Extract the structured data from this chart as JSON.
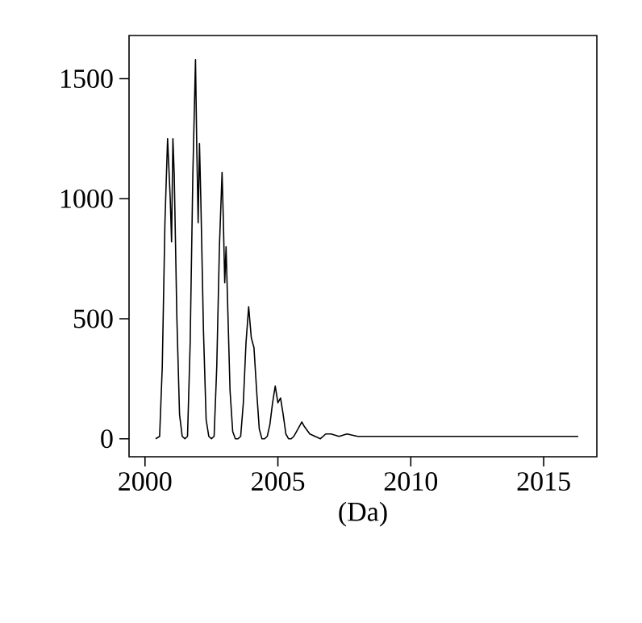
{
  "chart_data": {
    "type": "line",
    "xlabel": "(Da)",
    "xlim": [
      1999.4,
      2017
    ],
    "ylim": [
      -75,
      1680
    ],
    "xticks": [
      2000,
      2005,
      2010,
      2015
    ],
    "yticks": [
      0,
      500,
      1000,
      1500
    ],
    "grid": false,
    "marker": "none",
    "line_style": "solid",
    "series": [
      {
        "color": "#000000",
        "x": [
          2000.4,
          2000.55,
          2000.65,
          2000.75,
          2000.85,
          2000.95,
          2001.0,
          2001.05,
          2001.1,
          2001.2,
          2001.3,
          2001.4,
          2001.5,
          2001.6,
          2001.7,
          2001.8,
          2001.9,
          2001.95,
          2002.0,
          2002.05,
          2002.1,
          2002.2,
          2002.3,
          2002.4,
          2002.5,
          2002.6,
          2002.7,
          2002.8,
          2002.9,
          2002.95,
          2003.0,
          2003.05,
          2003.1,
          2003.2,
          2003.3,
          2003.4,
          2003.5,
          2003.6,
          2003.7,
          2003.8,
          2003.9,
          2004.0,
          2004.1,
          2004.2,
          2004.3,
          2004.4,
          2004.5,
          2004.6,
          2004.7,
          2004.8,
          2004.9,
          2005.0,
          2005.1,
          2005.2,
          2005.3,
          2005.4,
          2005.5,
          2005.6,
          2005.7,
          2005.8,
          2005.9,
          2006.0,
          2006.2,
          2006.4,
          2006.6,
          2006.8,
          2007.0,
          2007.3,
          2007.6,
          2008.0,
          2008.4,
          2008.8,
          2009.2,
          2009.6,
          2010.0,
          2010.5,
          2011.0,
          2011.5,
          2012.0,
          2012.5,
          2013.0,
          2013.5,
          2014.0,
          2014.5,
          2015.0,
          2015.5,
          2016.0,
          2016.3
        ],
        "values": [
          0,
          10,
          300,
          900,
          1250,
          1000,
          820,
          1250,
          1100,
          500,
          100,
          10,
          0,
          10,
          400,
          1100,
          1580,
          1200,
          900,
          1230,
          1000,
          450,
          80,
          10,
          0,
          10,
          300,
          800,
          1110,
          900,
          650,
          800,
          600,
          200,
          30,
          0,
          0,
          10,
          150,
          400,
          550,
          420,
          380,
          200,
          40,
          0,
          0,
          10,
          60,
          150,
          220,
          150,
          170,
          100,
          20,
          0,
          0,
          10,
          30,
          50,
          70,
          50,
          20,
          10,
          0,
          20,
          20,
          10,
          20,
          10,
          10,
          10,
          10,
          10,
          10,
          10,
          10,
          10,
          10,
          10,
          10,
          10,
          10,
          10,
          10,
          10,
          10,
          10
        ]
      }
    ]
  }
}
